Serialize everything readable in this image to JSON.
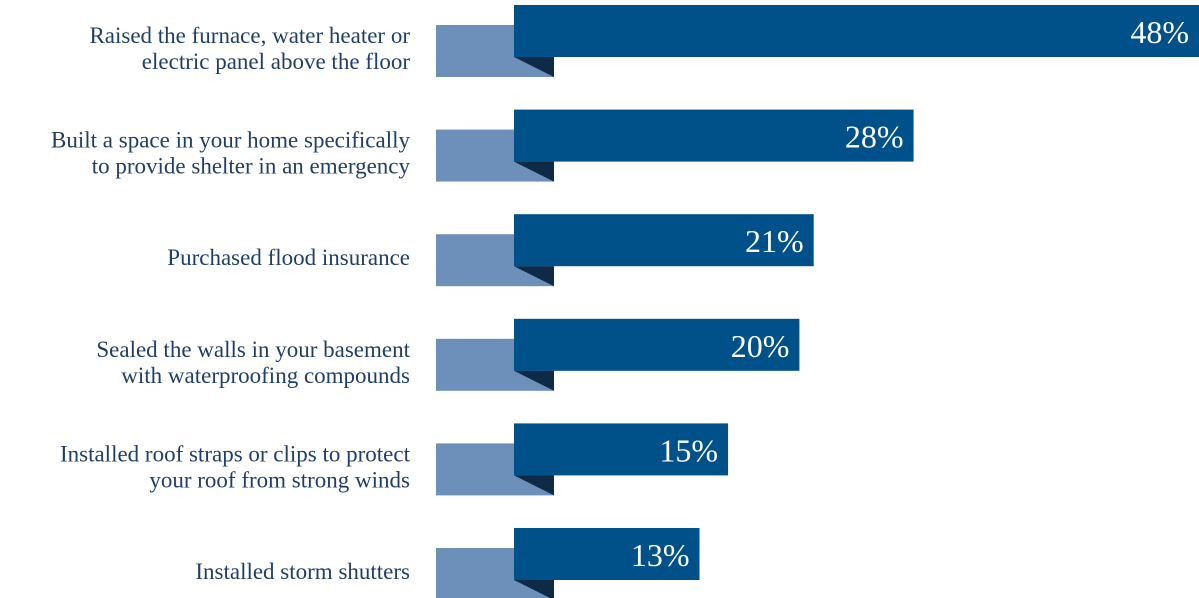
{
  "chart_data": {
    "type": "bar",
    "orientation": "horizontal",
    "categories": [
      [
        "Raised the furnace, water heater or",
        "electric panel above the floor"
      ],
      [
        "Built a space in your home specifically",
        "to provide shelter in an emergency"
      ],
      [
        "Purchased flood insurance"
      ],
      [
        "Sealed the walls in your basement",
        "with waterproofing compounds"
      ],
      [
        "Installed roof straps or clips to protect",
        "your roof from strong winds"
      ],
      [
        "Installed storm shutters"
      ]
    ],
    "values": [
      48,
      28,
      21,
      20,
      15,
      13
    ],
    "value_labels": [
      "48%",
      "28%",
      "21%",
      "20%",
      "15%",
      "13%"
    ],
    "unit": "%",
    "xlim": [
      0,
      48
    ],
    "title": "",
    "xlabel": "",
    "ylabel": "",
    "grid": false,
    "legend": "none",
    "colors": {
      "bar": "#00508a",
      "ribbon_tail": "#6d90bb",
      "fold_shadow": "#0f2a47",
      "label_text": "#1f3f66",
      "value_text": "#ffffff"
    }
  }
}
